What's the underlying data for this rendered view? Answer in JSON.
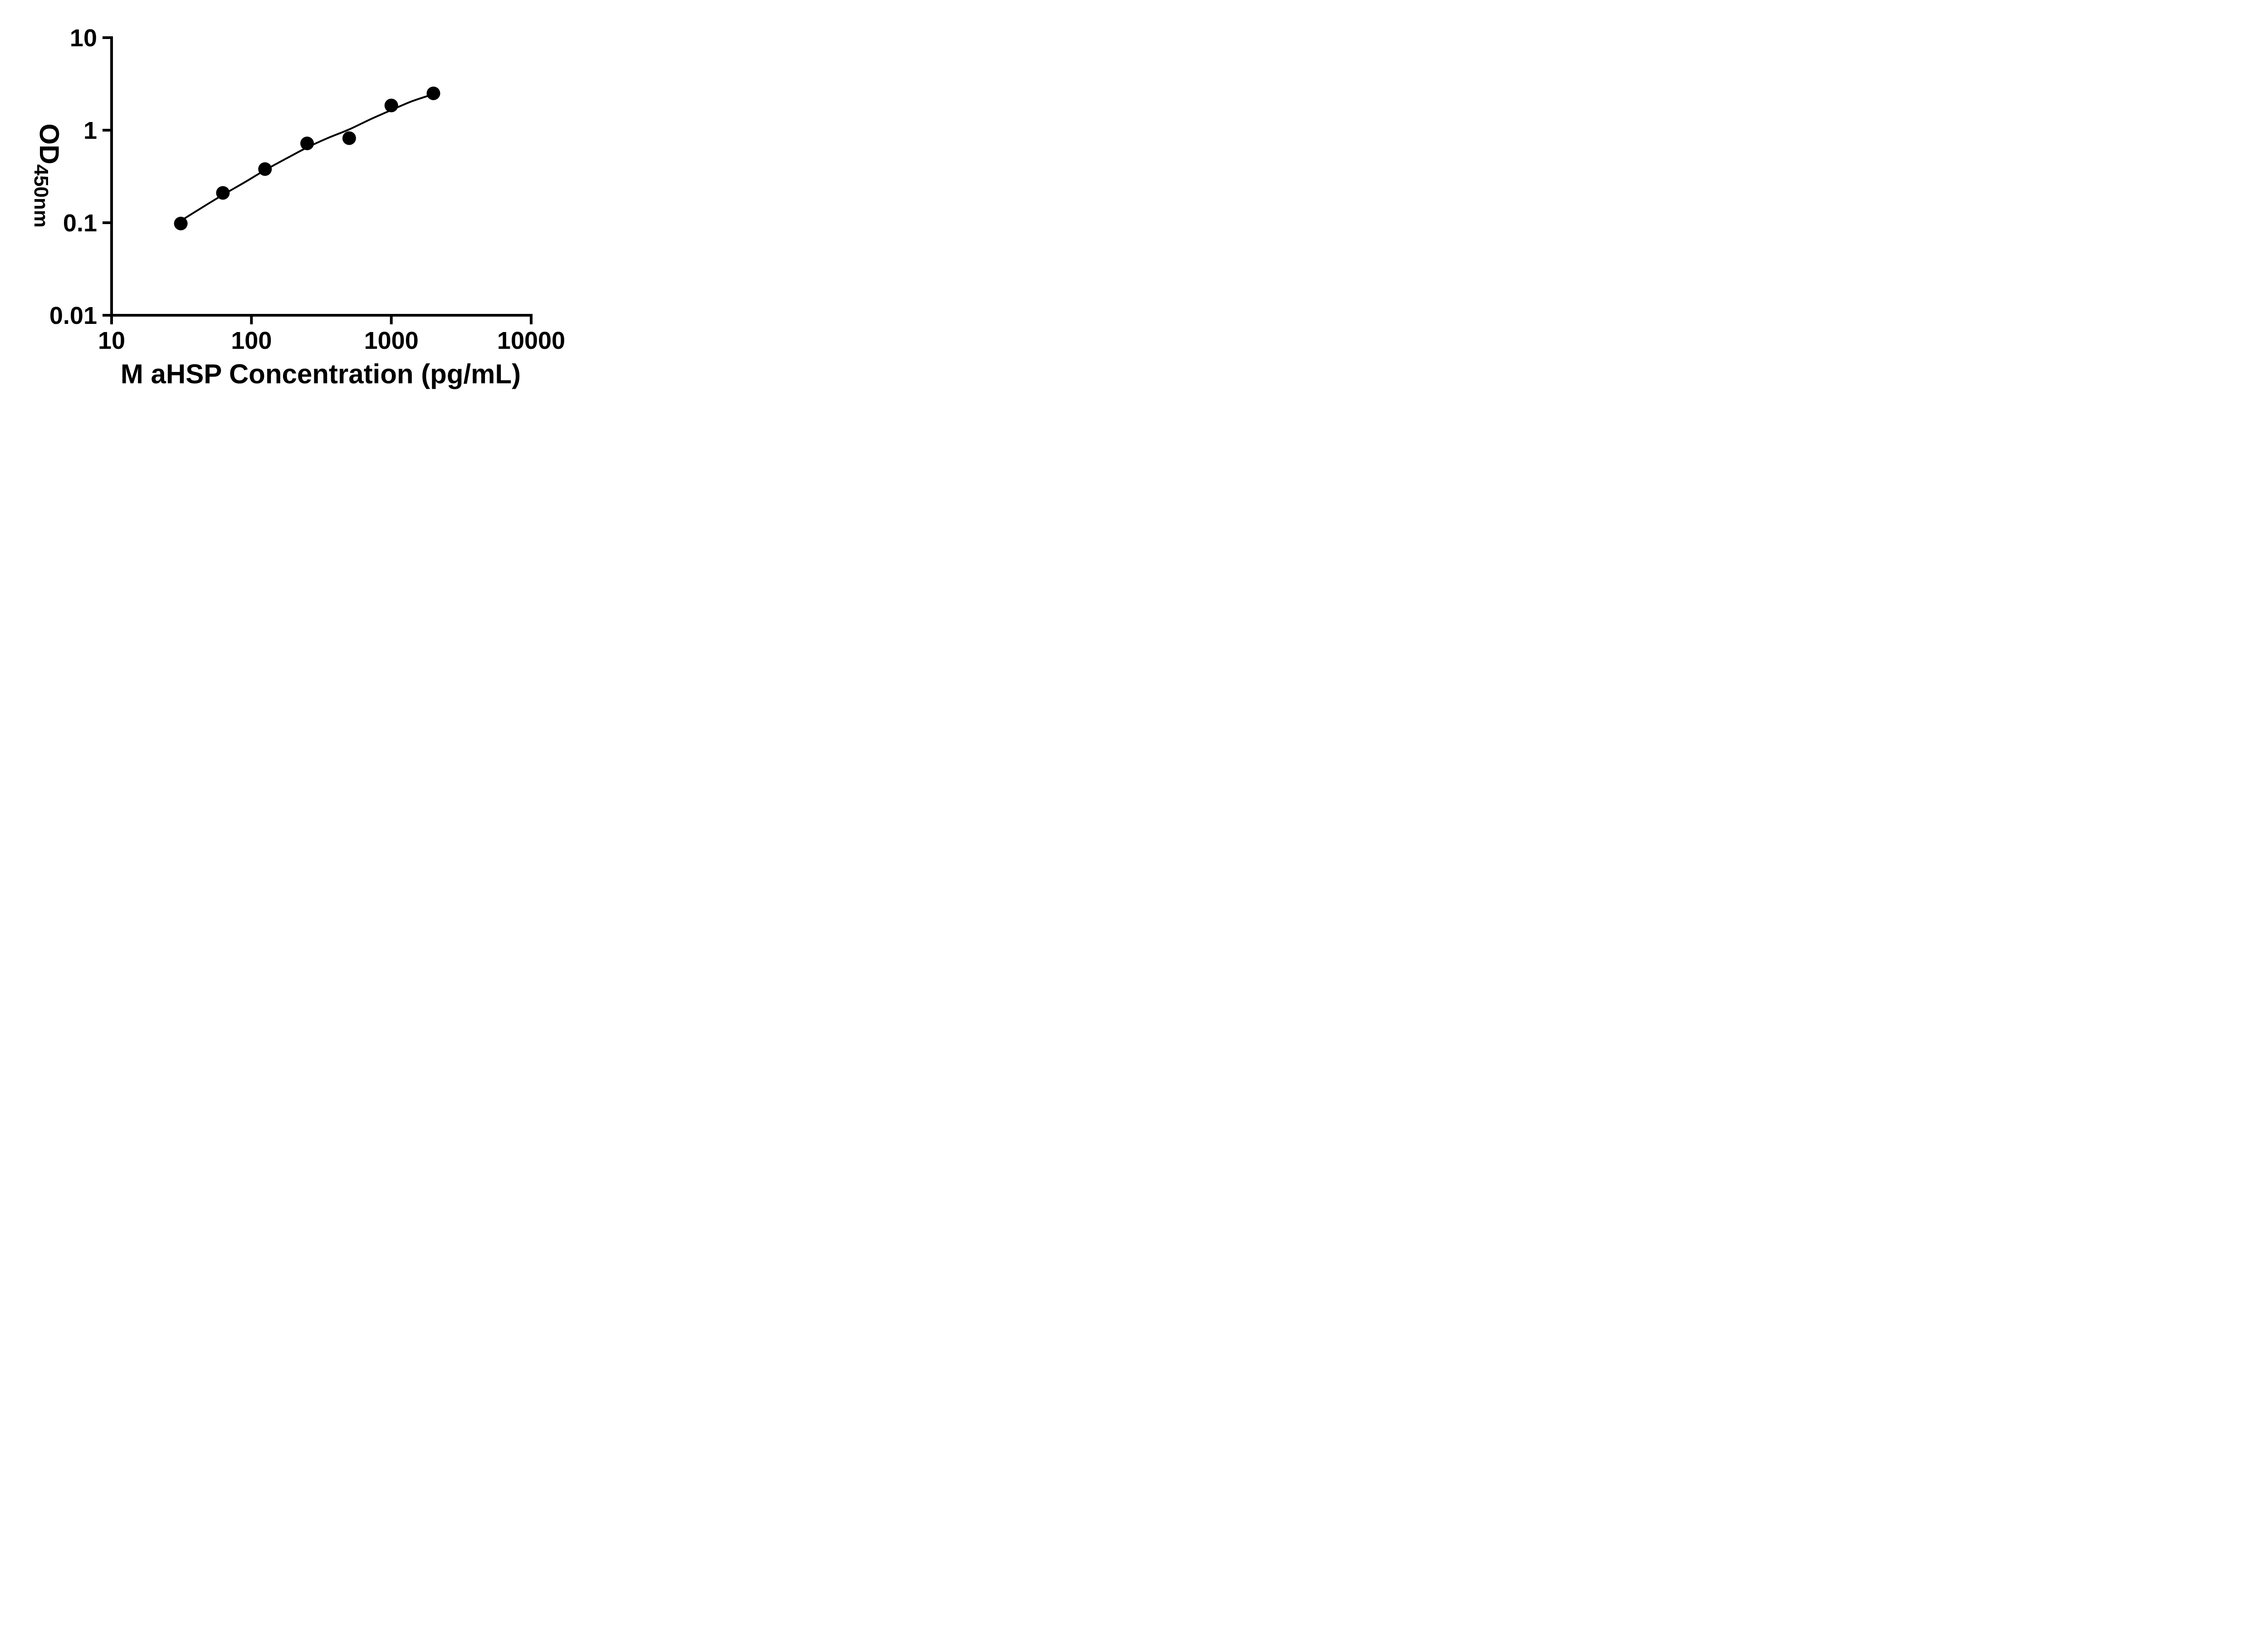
{
  "figure": {
    "background": "#ffffff",
    "ink_color": "#000000"
  },
  "chart_data": {
    "type": "scatter",
    "title": "",
    "xlabel": "M aHSP Concentration (pg/mL)",
    "ylabel": "OD450nm",
    "ylabel_main": "OD",
    "ylabel_sub": "450nm",
    "x_scale": "log",
    "y_scale": "log",
    "xlim": [
      10,
      10000
    ],
    "ylim": [
      0.01,
      10
    ],
    "x_ticks": [
      10,
      100,
      1000,
      10000
    ],
    "x_tick_labels": [
      "10",
      "100",
      "1000",
      "10000"
    ],
    "y_ticks": [
      0.01,
      0.1,
      1,
      10
    ],
    "y_tick_labels": [
      "0.01",
      "0.1",
      "1",
      "10"
    ],
    "grid": false,
    "legend": null,
    "series": [
      {
        "name": "fit-curve",
        "type": "line",
        "color": "#000000",
        "points": [
          {
            "x": 31.25,
            "y": 0.105
          },
          {
            "x": 45,
            "y": 0.148
          },
          {
            "x": 62.5,
            "y": 0.2
          },
          {
            "x": 90,
            "y": 0.275
          },
          {
            "x": 125,
            "y": 0.37
          },
          {
            "x": 180,
            "y": 0.5
          },
          {
            "x": 250,
            "y": 0.65
          },
          {
            "x": 350,
            "y": 0.82
          },
          {
            "x": 500,
            "y": 1.02
          },
          {
            "x": 700,
            "y": 1.3
          },
          {
            "x": 1000,
            "y": 1.65
          },
          {
            "x": 1400,
            "y": 2.05
          },
          {
            "x": 2000,
            "y": 2.45
          }
        ]
      },
      {
        "name": "standard-curve-points",
        "type": "scatter",
        "marker": "circle",
        "color": "#000000",
        "points": [
          {
            "x": 31.25,
            "y": 0.098
          },
          {
            "x": 62.5,
            "y": 0.21
          },
          {
            "x": 125,
            "y": 0.38
          },
          {
            "x": 250,
            "y": 0.72
          },
          {
            "x": 500,
            "y": 0.82
          },
          {
            "x": 1000,
            "y": 1.85
          },
          {
            "x": 2000,
            "y": 2.5
          }
        ]
      }
    ]
  }
}
